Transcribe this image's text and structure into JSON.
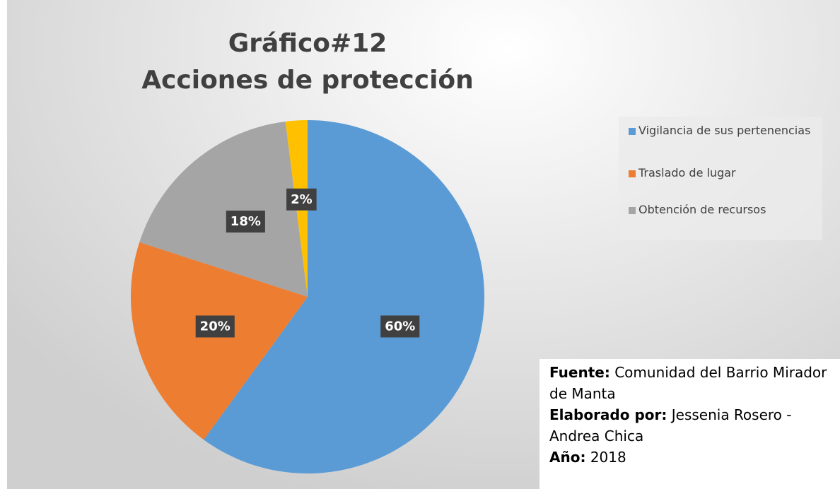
{
  "chart_data": {
    "type": "pie",
    "title": [
      "Gráfico#12",
      "Acciones de protección"
    ],
    "categories": [
      "Vigilancia de sus pertenencias",
      "Traslado de lugar",
      "Obtención de recursos",
      null
    ],
    "values": [
      60,
      20,
      18,
      2
    ],
    "value_labels": [
      "60%",
      "20%",
      "18%",
      "2%"
    ],
    "colors": [
      "#5b9bd5",
      "#ed7d31",
      "#a5a5a5",
      "#ffc000"
    ],
    "legend": "right",
    "source": [
      {
        "label": "Fuente:",
        "text": "Comunidad del Barrio Mirador de Manta"
      },
      {
        "label": "Elaborado por:",
        "text": "Jessenia Rosero - Andrea Chica"
      },
      {
        "label": "Año:",
        "text": "2018"
      }
    ]
  }
}
